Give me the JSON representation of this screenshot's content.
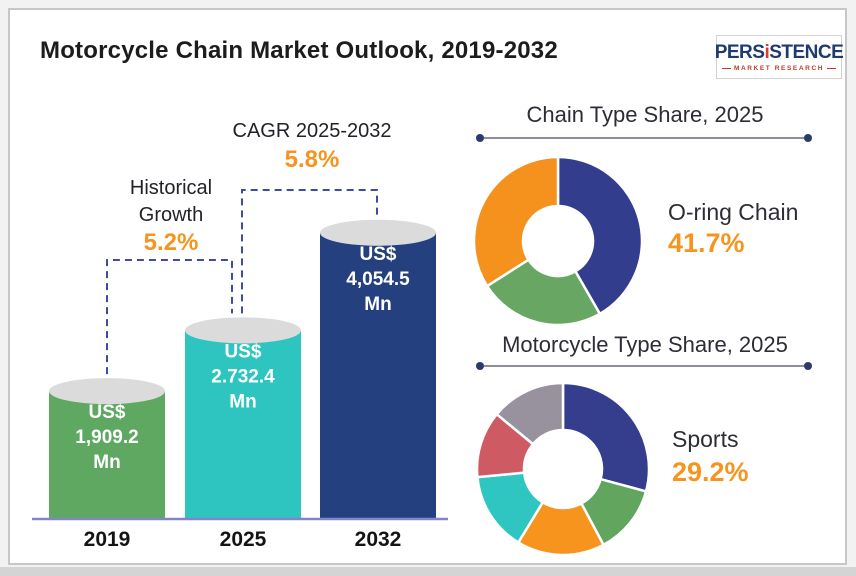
{
  "header": {
    "title": "Motorcycle Chain Market Outlook, 2019-2032",
    "logo": {
      "brand_pre": "PERS",
      "brand_i": "i",
      "brand_post": "STENCE",
      "subtitle": "MARKET RESEARCH"
    }
  },
  "colors": {
    "accent_orange": "#F7941E",
    "bracket_dash": "#3E4B9E",
    "axis_line": "#8286C9",
    "cylinder_top": "#DBDBDB",
    "year_label": "#141414",
    "bar_value_text": "#FFFFFF",
    "header_text": "#2D2D35",
    "rule_line": "#8E8E9C",
    "rule_dot": "#2B3A6B"
  },
  "chart_data": [
    {
      "type": "bar",
      "title": "",
      "categories": [
        "2019",
        "2025",
        "2032"
      ],
      "values": [
        1909.2,
        2732.4,
        4054.5
      ],
      "bar_labels": [
        [
          "US$",
          "1,909.2",
          "Mn"
        ],
        [
          "US$",
          "2.732.4",
          "Mn"
        ],
        [
          "US$",
          "4,054.5",
          "Mn"
        ]
      ],
      "bar_colors": [
        "#5FA862",
        "#2EC5C1",
        "#24407E"
      ],
      "ylim": [
        0,
        4500
      ],
      "annotations": {
        "historical": {
          "label": "Historical Growth",
          "value": "5.2%"
        },
        "cagr": {
          "label": "CAGR 2025-2032",
          "value": "5.8%"
        }
      }
    },
    {
      "type": "pie",
      "title": "Chain Type Share, 2025",
      "highlight": {
        "label": "O-ring Chain",
        "value": "41.7%"
      },
      "slices": [
        {
          "value": 41.7,
          "color": "#333D8E"
        },
        {
          "value": 24.3,
          "color": "#68A763"
        },
        {
          "value": 34.0,
          "color": "#F5921E"
        }
      ]
    },
    {
      "type": "pie",
      "title": "Motorcycle Type Share, 2025",
      "highlight": {
        "label": "Sports",
        "value": "29.2%"
      },
      "slices": [
        {
          "value": 29.2,
          "color": "#353E8D"
        },
        {
          "value": 13.0,
          "color": "#61A55E"
        },
        {
          "value": 16.5,
          "color": "#F6941D"
        },
        {
          "value": 14.8,
          "color": "#2FC6C1"
        },
        {
          "value": 12.5,
          "color": "#CE5A64"
        },
        {
          "value": 14.0,
          "color": "#98929F"
        }
      ]
    }
  ]
}
